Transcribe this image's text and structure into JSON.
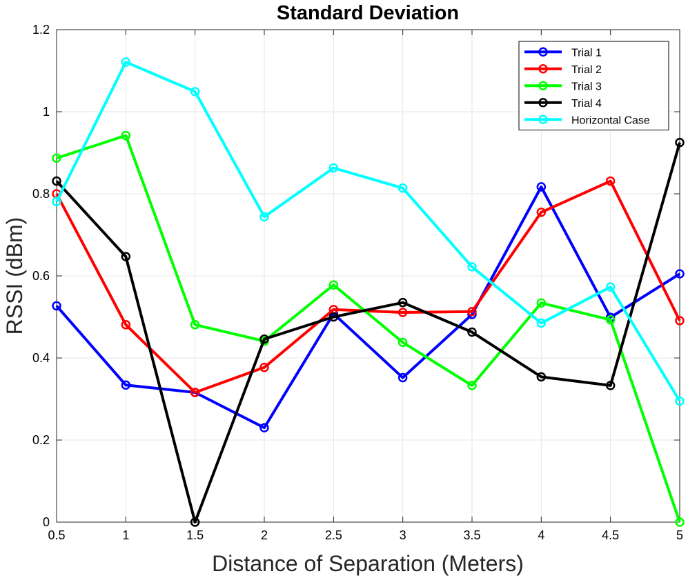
{
  "chart_data": {
    "type": "line",
    "title": "Standard Deviation",
    "xlabel": "Distance of Separation (Meters)",
    "ylabel": "RSSI (dBm)",
    "x": [
      0.5,
      1,
      1.5,
      2,
      2.5,
      3,
      3.5,
      4,
      4.5,
      5
    ],
    "x_tick_labels": [
      "0.5",
      "1",
      "1.5",
      "2",
      "2.5",
      "3",
      "3.5",
      "4",
      "4.5",
      "5"
    ],
    "y_ticks": [
      0,
      0.2,
      0.4,
      0.6,
      0.8,
      1,
      1.2
    ],
    "y_tick_labels": [
      "0",
      "0.2",
      "0.4",
      "0.6",
      "0.8",
      "1",
      "1.2"
    ],
    "xlim": [
      0.5,
      5
    ],
    "ylim": [
      0,
      1.2
    ],
    "grid": true,
    "legend_position": "top-right",
    "series": [
      {
        "name": "Trial 1",
        "color": "#0000ff",
        "values": [
          0.527,
          0.334,
          0.316,
          0.23,
          0.508,
          0.352,
          0.506,
          0.817,
          0.499,
          0.605
        ]
      },
      {
        "name": "Trial 2",
        "color": "#ff0000",
        "values": [
          0.8,
          0.481,
          0.316,
          0.377,
          0.518,
          0.511,
          0.513,
          0.755,
          0.831,
          0.491
        ]
      },
      {
        "name": "Trial 3",
        "color": "#00ff00",
        "values": [
          0.887,
          0.942,
          0.481,
          0.441,
          0.578,
          0.438,
          0.333,
          0.534,
          0.493,
          0.0
        ]
      },
      {
        "name": "Trial 4",
        "color": "#000000",
        "values": [
          0.831,
          0.647,
          0.0,
          0.446,
          0.5,
          0.535,
          0.463,
          0.354,
          0.333,
          0.925
        ]
      },
      {
        "name": "Horizontal Case",
        "color": "#00ffff",
        "values": [
          0.781,
          1.121,
          1.049,
          0.744,
          0.863,
          0.814,
          0.622,
          0.485,
          0.573,
          0.295
        ]
      }
    ]
  }
}
